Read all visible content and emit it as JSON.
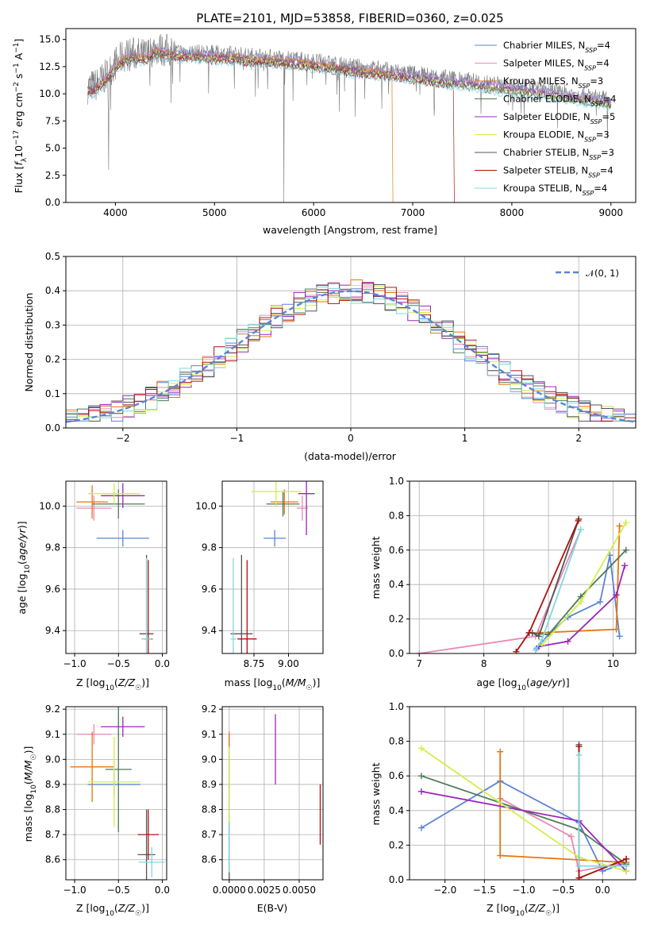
{
  "colors": {
    "Chabrier MILES": "#5b84d6",
    "Salpeter MILES": "#e88ab6",
    "Kroupa MILES": "#e4760f",
    "Chabrier ELODIE": "#4e7a57",
    "Salpeter ELODIE": "#9b25b8",
    "Kroupa ELODIE": "#d2ef4a",
    "Chabrier STELIB": "#555555",
    "Salpeter STELIB": "#b01010",
    "Kroupa STELIB": "#7fd8df"
  },
  "chart_data": [
    {
      "id": "spectrum",
      "type": "line",
      "title": "PLATE=2101, MJD=53858, FIBERID=0360, z=0.025",
      "xlabel": "wavelength [Angstrom, rest frame]",
      "ylabel": "Flux [f_λ 10^-17 erg cm^-2 s^-1 A^-1]",
      "xlim": [
        3500,
        9250
      ],
      "ylim": [
        0,
        16
      ],
      "xticks": [
        4000,
        5000,
        6000,
        7000,
        8000,
        9000
      ],
      "yticks": [
        0.0,
        2.5,
        5.0,
        7.5,
        10.0,
        12.5,
        15.0
      ],
      "grid": false,
      "legend_position": "top-right",
      "data_continuum": {
        "x": [
          3720,
          3800,
          3900,
          4000,
          4100,
          4200,
          4300,
          4400,
          4500,
          4600,
          4800,
          5000,
          5200,
          5500,
          5800,
          6000,
          6300,
          6600,
          6900,
          7200,
          7500,
          7800,
          8000,
          8300,
          8600,
          8900,
          9000
        ],
        "y": [
          10.6,
          10.8,
          11.6,
          12.8,
          13.6,
          13.7,
          13.5,
          14.2,
          14.0,
          13.9,
          13.8,
          13.7,
          13.6,
          13.4,
          13.2,
          13.0,
          12.6,
          12.3,
          12.0,
          11.6,
          11.3,
          10.9,
          10.7,
          10.4,
          10.0,
          9.6,
          9.4
        ]
      },
      "series": [
        {
          "name": "Chabrier MILES, N_SSP=4",
          "drop": 0
        },
        {
          "name": "Salpeter MILES, N_SSP=4",
          "drop": 0
        },
        {
          "name": "Kroupa MILES, N_SSP=3",
          "drop": 6800
        },
        {
          "name": "Chabrier ELODIE, N_SSP=4",
          "drop": 0
        },
        {
          "name": "Salpeter ELODIE, N_SSP=5",
          "drop": 0
        },
        {
          "name": "Kroupa ELODIE, N_SSP=3",
          "drop": 0
        },
        {
          "name": "Chabrier STELIB, N_SSP=3",
          "drop": 0
        },
        {
          "name": "Salpeter STELIB, N_SSP=4",
          "drop": 7420
        },
        {
          "name": "Kroupa STELIB, N_SSP=4",
          "drop": 0
        }
      ],
      "legend": [
        "Chabrier MILES, N_SSP=4",
        "Salpeter MILES, N_SSP=4",
        "Kroupa MILES, N_SSP=3",
        "Chabrier ELODIE, N_SSP=4",
        "Salpeter ELODIE, N_SSP=5",
        "Kroupa ELODIE, N_SSP=3",
        "Chabrier STELIB, N_SSP=3",
        "Salpeter STELIB, N_SSP=4",
        "Kroupa STELIB, N_SSP=4"
      ]
    },
    {
      "id": "residuals",
      "type": "line",
      "xlabel": "(data-model)/error",
      "ylabel": "Normed distribution",
      "xlim": [
        -2.5,
        2.5
      ],
      "ylim": [
        0,
        0.5
      ],
      "xticks": [
        -2,
        -1,
        0,
        1,
        2
      ],
      "yticks": [
        0.0,
        0.1,
        0.2,
        0.3,
        0.4,
        0.5
      ],
      "grid": true,
      "legend_position": "top-right",
      "gaussian": {
        "name": "𝒩(0, 1)",
        "mean": 0,
        "sigma": 1,
        "color": "#5b84d6"
      },
      "bin_width": 0.1
    },
    {
      "id": "age-vs-Z",
      "type": "scatter",
      "xlabel": "Z [log10(Z/Z☉)]",
      "ylabel": "age  [log10(age/yr)]",
      "xlim": [
        -1.1,
        0.05
      ],
      "ylim": [
        9.29,
        10.12
      ],
      "xticks": [
        -1.0,
        -0.5,
        0.0
      ],
      "yticks": [
        9.4,
        9.6,
        9.8,
        10.0
      ],
      "grid": true,
      "points": [
        {
          "series": "Chabrier MILES",
          "x": -0.45,
          "y": 9.845,
          "xerr": 0.3,
          "yerr": 0.04
        },
        {
          "series": "Salpeter MILES",
          "x": -0.78,
          "y": 9.99,
          "xerr": 0.2,
          "yerr": 0.06
        },
        {
          "series": "Kroupa MILES",
          "x": -0.8,
          "y": 10.02,
          "xerr": 0.18,
          "yerr": 0.08
        },
        {
          "series": "Chabrier ELODIE",
          "x": -0.5,
          "y": 10.01,
          "xerr": 0.3,
          "yerr": 0.07
        },
        {
          "series": "Salpeter ELODIE",
          "x": -0.45,
          "y": 10.05,
          "xerr": 0.25,
          "yerr": 0.06
        },
        {
          "series": "Kroupa ELODIE",
          "x": -0.55,
          "y": 10.06,
          "xerr": 0.3,
          "yerr": 0.05
        },
        {
          "series": "Chabrier STELIB",
          "x": -0.18,
          "y": 9.385,
          "xerr": 0.08,
          "yerr": 0.38
        },
        {
          "series": "Salpeter STELIB",
          "x": -0.16,
          "y": 9.36,
          "xerr": 0.05,
          "yerr": 0.38
        },
        {
          "series": "Kroupa STELIB",
          "x": -0.18,
          "y": 9.36,
          "xerr": 0.06,
          "yerr": 0.39
        }
      ]
    },
    {
      "id": "age-vs-mass",
      "type": "scatter",
      "xlabel": "mass [log10(M/M☉)]",
      "ylabel": "",
      "xlim": [
        8.52,
        9.25
      ],
      "ylim": [
        9.29,
        10.12
      ],
      "xticks": [
        8.75,
        9.0
      ],
      "yticks": [
        9.4,
        9.6,
        9.8,
        10.0
      ],
      "grid": true,
      "points": [
        {
          "series": "Chabrier MILES",
          "x": 8.9,
          "y": 9.845,
          "xerr": 0.08,
          "yerr": 0.04
        },
        {
          "series": "Salpeter MILES",
          "x": 9.1,
          "y": 9.99,
          "xerr": 0.04,
          "yerr": 0.06
        },
        {
          "series": "Kroupa MILES",
          "x": 8.97,
          "y": 10.02,
          "xerr": 0.1,
          "yerr": 0.06
        },
        {
          "series": "Chabrier ELODIE",
          "x": 8.96,
          "y": 10.01,
          "xerr": 0.12,
          "yerr": 0.06
        },
        {
          "series": "Salpeter ELODIE",
          "x": 9.13,
          "y": 10.06,
          "xerr": 0.06,
          "yerr": 0.2
        },
        {
          "series": "Kroupa ELODIE",
          "x": 8.91,
          "y": 10.07,
          "xerr": 0.18,
          "yerr": 0.07
        },
        {
          "series": "Chabrier STELIB",
          "x": 8.66,
          "y": 9.385,
          "xerr": 0.08,
          "yerr": 0.38
        },
        {
          "series": "Salpeter STELIB",
          "x": 8.7,
          "y": 9.36,
          "xerr": 0.07,
          "yerr": 0.38
        },
        {
          "series": "Kroupa STELIB",
          "x": 8.6,
          "y": 9.36,
          "xerr": 0.02,
          "yerr": 0.39
        }
      ]
    },
    {
      "id": "mass-vs-Z",
      "type": "scatter",
      "xlabel": "Z [log10(Z/Z☉)]",
      "ylabel": "mass [log10(M/M☉)]",
      "xlim": [
        -1.1,
        0.05
      ],
      "ylim": [
        8.52,
        9.21
      ],
      "xticks": [
        -1.0,
        -0.5,
        0.0
      ],
      "yticks": [
        8.6,
        8.7,
        8.8,
        8.9,
        9.0,
        9.1,
        9.2
      ],
      "grid": true,
      "points": [
        {
          "series": "Chabrier MILES",
          "x": -0.55,
          "y": 8.9,
          "xerr": 0.3,
          "yerr": 0.05
        },
        {
          "series": "Salpeter MILES",
          "x": -0.78,
          "y": 9.1,
          "xerr": 0.2,
          "yerr": 0.04
        },
        {
          "series": "Kroupa MILES",
          "x": -0.8,
          "y": 8.97,
          "xerr": 0.25,
          "yerr": 0.14
        },
        {
          "series": "Chabrier ELODIE",
          "x": -0.5,
          "y": 8.96,
          "xerr": 0.15,
          "yerr": 0.25
        },
        {
          "series": "Salpeter ELODIE",
          "x": -0.45,
          "y": 9.13,
          "xerr": 0.25,
          "yerr": 0.04
        },
        {
          "series": "Kroupa ELODIE",
          "x": -0.55,
          "y": 8.91,
          "xerr": 0.3,
          "yerr": 0.18
        },
        {
          "series": "Chabrier STELIB",
          "x": -0.18,
          "y": 8.62,
          "xerr": 0.1,
          "yerr": 0.18
        },
        {
          "series": "Salpeter STELIB",
          "x": -0.16,
          "y": 8.7,
          "xerr": 0.12,
          "yerr": 0.1
        },
        {
          "series": "Kroupa STELIB",
          "x": -0.12,
          "y": 8.59,
          "xerr": 0.15,
          "yerr": 0.06
        }
      ]
    },
    {
      "id": "mass-vs-EBV",
      "type": "scatter",
      "xlabel": "E(B-V)",
      "ylabel": "",
      "xlim": [
        -0.0005,
        0.0067
      ],
      "ylim": [
        8.52,
        9.21
      ],
      "xticks": [
        0.0,
        0.0025,
        0.005
      ],
      "xticklabels": [
        "0.0000",
        "0.0025",
        "0.0050"
      ],
      "yticks": [
        8.6,
        8.7,
        8.8,
        8.9,
        9.0,
        9.1,
        9.2
      ],
      "grid": true,
      "points": [
        {
          "series": "Chabrier MILES",
          "x": 0.0,
          "y": 8.9,
          "xerr": 0,
          "yerr": 0.2
        },
        {
          "series": "Salpeter MILES",
          "x": 0.0,
          "y": 9.0,
          "xerr": 0,
          "yerr": 0.1
        },
        {
          "series": "Kroupa MILES",
          "x": 0.0,
          "y": 8.97,
          "xerr": 0,
          "yerr": 0.14
        },
        {
          "series": "Chabrier ELODIE",
          "x": 0.0,
          "y": 8.85,
          "xerr": 0,
          "yerr": 0.2
        },
        {
          "series": "Salpeter ELODIE",
          "x": 0.0033,
          "y": 9.04,
          "xerr": 0,
          "yerr": 0.14
        },
        {
          "series": "Kroupa ELODIE",
          "x": 0.0,
          "y": 8.9,
          "xerr": 0,
          "yerr": 0.15
        },
        {
          "series": "Chabrier STELIB",
          "x": 0.0,
          "y": 8.62,
          "xerr": 0,
          "yerr": 0.12
        },
        {
          "series": "Salpeter STELIB",
          "x": 0.0065,
          "y": 8.78,
          "xerr": 0,
          "yerr": 0.12
        },
        {
          "series": "Kroupa STELIB",
          "x": 0.0,
          "y": 8.65,
          "xerr": 0,
          "yerr": 0.1
        }
      ]
    },
    {
      "id": "weight-vs-age",
      "type": "line",
      "xlabel": "age  [log10(age/yr)]",
      "ylabel": "mass weight",
      "xlim": [
        6.85,
        10.35
      ],
      "ylim": [
        0,
        1.0
      ],
      "xticks": [
        7,
        8,
        9,
        10
      ],
      "yticks": [
        0.0,
        0.2,
        0.4,
        0.6,
        0.8,
        1.0
      ],
      "grid": true,
      "series": [
        {
          "name": "Chabrier MILES",
          "x": [
            8.82,
            9.0,
            9.3,
            9.8,
            9.95,
            10.1
          ],
          "y": [
            0.03,
            0.11,
            0.21,
            0.3,
            0.57,
            0.1
          ]
        },
        {
          "name": "Salpeter MILES",
          "x": [
            7.0,
            8.8,
            9.5
          ],
          "y": [
            0.0,
            0.1,
            0.72
          ]
        },
        {
          "name": "Kroupa MILES",
          "x": [
            8.85,
            10.05,
            10.1
          ],
          "y": [
            0.12,
            0.14,
            0.74
          ]
        },
        {
          "name": "Chabrier ELODIE",
          "x": [
            8.7,
            9.0,
            9.5,
            10.2
          ],
          "y": [
            0.12,
            0.11,
            0.33,
            0.6
          ]
        },
        {
          "name": "Salpeter ELODIE",
          "x": [
            8.85,
            9.3,
            10.05,
            10.18
          ],
          "y": [
            0.04,
            0.07,
            0.34,
            0.51
          ]
        },
        {
          "name": "Kroupa ELODIE",
          "x": [
            8.9,
            9.5,
            10.2
          ],
          "y": [
            0.05,
            0.3,
            0.76
          ]
        },
        {
          "name": "Chabrier STELIB",
          "x": [
            8.75,
            8.85,
            9.47
          ],
          "y": [
            0.12,
            0.1,
            0.78
          ]
        },
        {
          "name": "Salpeter STELIB",
          "x": [
            8.5,
            8.7,
            9.46
          ],
          "y": [
            0.01,
            0.12,
            0.77
          ]
        },
        {
          "name": "Kroupa STELIB",
          "x": [
            8.8,
            8.9,
            9.5
          ],
          "y": [
            0.02,
            0.08,
            0.72
          ]
        }
      ]
    },
    {
      "id": "weight-vs-Z",
      "type": "line",
      "xlabel": "Z [log10(Z/Z☉)]",
      "ylabel": "mass weight",
      "xlim": [
        -2.45,
        0.42
      ],
      "ylim": [
        0,
        1.0
      ],
      "xticks": [
        -2.0,
        -1.5,
        -1.0,
        -0.5,
        0.0
      ],
      "yticks": [
        0.0,
        0.2,
        0.4,
        0.6,
        0.8,
        1.0
      ],
      "grid": true,
      "series": [
        {
          "name": "Chabrier MILES",
          "x": [
            -2.3,
            -1.3,
            -0.3,
            0.0,
            0.3
          ],
          "y": [
            0.3,
            0.57,
            0.33,
            0.05,
            0.1
          ]
        },
        {
          "name": "Salpeter MILES",
          "x": [
            -1.3,
            -0.4,
            -0.3,
            0.3
          ],
          "y": [
            0.47,
            0.25,
            0.05,
            0.1
          ]
        },
        {
          "name": "Kroupa MILES",
          "x": [
            -1.3,
            -1.3,
            0.3
          ],
          "y": [
            0.74,
            0.14,
            0.1
          ]
        },
        {
          "name": "Chabrier ELODIE",
          "x": [
            -2.3,
            -0.3,
            0.3
          ],
          "y": [
            0.6,
            0.29,
            0.09
          ]
        },
        {
          "name": "Salpeter ELODIE",
          "x": [
            -2.3,
            -0.3,
            0.3
          ],
          "y": [
            0.51,
            0.34,
            0.05
          ]
        },
        {
          "name": "Kroupa ELODIE",
          "x": [
            -2.3,
            -0.3,
            0.3
          ],
          "y": [
            0.76,
            0.13,
            0.05
          ]
        },
        {
          "name": "Chabrier STELIB",
          "x": [
            -0.3,
            -0.3,
            0.3
          ],
          "y": [
            0.78,
            0.01,
            0.12
          ]
        },
        {
          "name": "Salpeter STELIB",
          "x": [
            -0.3,
            -0.3,
            0.3
          ],
          "y": [
            0.77,
            0.01,
            0.12
          ]
        },
        {
          "name": "Kroupa STELIB",
          "x": [
            -0.3,
            -0.3,
            0.3
          ],
          "y": [
            0.72,
            0.08,
            0.08
          ]
        }
      ]
    }
  ]
}
